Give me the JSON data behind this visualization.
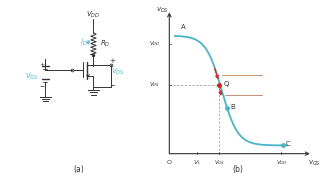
{
  "bg_color": "#ffffff",
  "curve_color": "#4ab5c4",
  "dashed_color": "#999999",
  "arrow_color": "#cc2222",
  "loadline_color": "#c09070",
  "circuit_color": "#333333",
  "cyan_color": "#4ab5c4",
  "label_a": "(a)",
  "label_b": "(b)",
  "vdd_label": "V_{DD}",
  "id_label": "I_D",
  "rd_label": "R_D",
  "vgs_label": "V_{GS}",
  "vds_label": "V_{DS}",
  "vds_ax": "v_{DS}",
  "vgs_ax": "v_{GS}"
}
